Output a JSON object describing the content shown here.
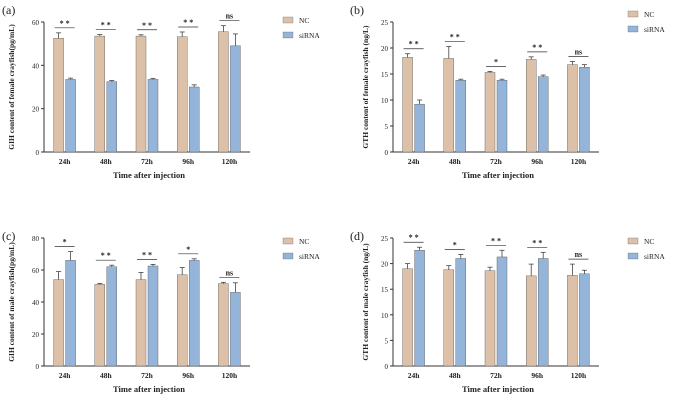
{
  "colors": {
    "nc": "#dcc1a8",
    "sirna": "#94b4d9",
    "axis": "#333333",
    "error": "#444444"
  },
  "chart_data": [
    {
      "type": "bar",
      "panel_label": "(a)",
      "title": "",
      "xlabel": "Time after injection",
      "ylabel": "GIH content of female crayfish(pg/mL)",
      "categories": [
        "24h",
        "48h",
        "72h",
        "96h",
        "120h"
      ],
      "ylim": [
        0,
        60
      ],
      "yticks": [
        "0",
        "20",
        "40",
        "60"
      ],
      "series": [
        {
          "name": "NC",
          "values": [
            52.5,
            53.5,
            53.5,
            53.2,
            55.5
          ],
          "errors": [
            2.5,
            0.7,
            0.6,
            2.2,
            2.8
          ]
        },
        {
          "name": "siRNA",
          "values": [
            33.5,
            32.5,
            33.5,
            30.0,
            49.0
          ],
          "errors": [
            0.6,
            0.5,
            0.5,
            1.0,
            5.5
          ]
        }
      ],
      "significance": [
        "* *",
        "* *",
        "* *",
        "* *",
        "ns"
      ]
    },
    {
      "type": "bar",
      "panel_label": "(b)",
      "title": "",
      "xlabel": "Time after injection",
      "ylabel": "GTH content of female crayfish (ng/L)",
      "categories": [
        "24h",
        "48h",
        "72h",
        "96h",
        "120h"
      ],
      "ylim": [
        0,
        25
      ],
      "yticks": [
        "0",
        "5",
        "10",
        "15",
        "20",
        "25"
      ],
      "series": [
        {
          "name": "NC",
          "values": [
            18.2,
            18.0,
            15.3,
            17.8,
            16.8
          ],
          "errors": [
            0.7,
            2.3,
            0.2,
            0.5,
            0.6
          ]
        },
        {
          "name": "siRNA",
          "values": [
            9.2,
            13.8,
            13.8,
            14.5,
            16.3
          ],
          "errors": [
            0.8,
            0.2,
            0.2,
            0.3,
            0.5
          ]
        }
      ],
      "significance": [
        "* *",
        "* *",
        "*",
        "* *",
        "ns"
      ]
    },
    {
      "type": "bar",
      "panel_label": "(c)",
      "title": "",
      "xlabel": "Time after injection",
      "ylabel": "GIH content of male crayfish(pg/mL)",
      "categories": [
        "24h",
        "48h",
        "72h",
        "96h",
        "120h"
      ],
      "ylim": [
        0,
        80
      ],
      "yticks": [
        "0",
        "20",
        "40",
        "60",
        "80"
      ],
      "series": [
        {
          "name": "NC",
          "values": [
            54.0,
            51.0,
            54.0,
            57.0,
            51.5
          ],
          "errors": [
            5.0,
            0.6,
            4.5,
            4.5,
            0.8
          ]
        },
        {
          "name": "siRNA",
          "values": [
            66.0,
            62.0,
            62.5,
            66.0,
            46.0
          ],
          "errors": [
            5.5,
            1.0,
            1.0,
            1.0,
            6.0
          ]
        }
      ],
      "significance": [
        "*",
        "* *",
        "* *",
        "*",
        "ns"
      ]
    },
    {
      "type": "bar",
      "panel_label": "(d)",
      "title": "",
      "xlabel": "Time after injection",
      "ylabel": "GTH content of male crayfish (ng/L)",
      "categories": [
        "24h",
        "48h",
        "72h",
        "96h",
        "120h"
      ],
      "ylim": [
        0,
        25
      ],
      "yticks": [
        "0",
        "5",
        "10",
        "15",
        "20",
        "25"
      ],
      "series": [
        {
          "name": "NC",
          "values": [
            19.0,
            18.8,
            18.6,
            17.6,
            17.7
          ],
          "errors": [
            1.0,
            0.8,
            0.7,
            2.3,
            2.2
          ]
        },
        {
          "name": "siRNA",
          "values": [
            22.6,
            21.0,
            21.3,
            21.0,
            18.0
          ],
          "errors": [
            0.6,
            0.8,
            1.3,
            1.2,
            0.7
          ]
        }
      ],
      "significance": [
        "* *",
        "*",
        "* *",
        "* *",
        "ns"
      ]
    }
  ]
}
